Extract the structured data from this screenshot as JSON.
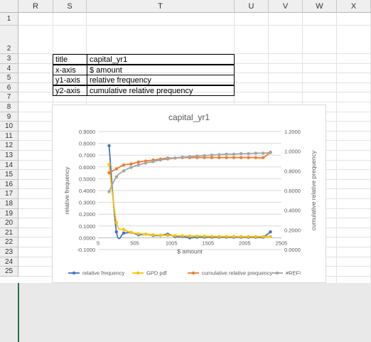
{
  "columns": [
    "R",
    "S",
    "T",
    "U",
    "V",
    "W",
    "X"
  ],
  "rows": [
    "1",
    "2",
    "3",
    "4",
    "5",
    "6",
    "7",
    "8",
    "9",
    "10",
    "11",
    "12",
    "13",
    "14",
    "15",
    "16",
    "17",
    "18",
    "19",
    "20",
    "21",
    "22",
    "23",
    "24",
    "25"
  ],
  "table": [
    {
      "key": "title",
      "value": "capital_yr1"
    },
    {
      "key": "x-axis",
      "value": "$ amount"
    },
    {
      "key": "y1-axis",
      "value": "relative frequency"
    },
    {
      "key": "y2-axis",
      "value": "cumulative relative prequency"
    }
  ],
  "chart_data": {
    "type": "line",
    "title": "capital_yr1",
    "xlabel": "$ amount",
    "ylabel": "relative frequency",
    "y2label": "cumulative relative prequency",
    "xlim": [
      5,
      2505
    ],
    "xticks": [
      "5",
      "505",
      "1005",
      "1505",
      "2005",
      "2505"
    ],
    "ylim": [
      -0.1,
      0.9
    ],
    "yticks": [
      "-0.1000",
      "0.0000",
      "0.1000",
      "0.2000",
      "0.3000",
      "0.4000",
      "0.5000",
      "0.6000",
      "0.7000",
      "0.8000",
      "0.9000"
    ],
    "y2lim": [
      0,
      1.2
    ],
    "y2ticks": [
      "0.0000",
      "0.2000",
      "0.4000",
      "0.6000",
      "0.8000",
      "1.0000",
      "1.2000"
    ],
    "legend_position": "bottom",
    "series": [
      {
        "name": "relative frequency",
        "axis": "y1",
        "color": "#4472C4",
        "x": [
          155,
          255,
          355,
          455,
          555,
          655,
          755,
          855,
          955,
          1055,
          1155,
          1255,
          1355,
          1455,
          1555,
          1655,
          1755,
          1855,
          1955,
          2055,
          2155,
          2255,
          2355
        ],
        "y": [
          0.78,
          0.05,
          0.04,
          0.045,
          0.025,
          0.03,
          0.02,
          0.02,
          0.03,
          0.01,
          0.01,
          0.0,
          0.005,
          0.005,
          0.005,
          0.005,
          0.005,
          0.005,
          0.005,
          0.005,
          0.005,
          0.005,
          0.05
        ]
      },
      {
        "name": "GPD pdf",
        "axis": "y1",
        "color": "#FFC000",
        "x": [
          155,
          255,
          355,
          455,
          555,
          655,
          755,
          855,
          955,
          1055,
          1155,
          1255,
          1355,
          1455,
          1555,
          1655,
          1755,
          1855,
          1955,
          2055,
          2155,
          2255,
          2355
        ],
        "y": [
          0.62,
          0.13,
          0.07,
          0.045,
          0.035,
          0.03,
          0.025,
          0.022,
          0.02,
          0.018,
          0.016,
          0.015,
          0.014,
          0.013,
          0.012,
          0.011,
          0.011,
          0.01,
          0.01,
          0.01,
          0.01,
          0.01,
          0.01
        ]
      },
      {
        "name": "cumulative relative prequency",
        "axis": "y2",
        "color": "#ED7D31",
        "x": [
          155,
          255,
          355,
          455,
          555,
          655,
          755,
          855,
          955,
          1055,
          1155,
          1255,
          1355,
          1455,
          1555,
          1655,
          1755,
          1855,
          1955,
          2055,
          2155,
          2255,
          2355
        ],
        "y": [
          0.78,
          0.82,
          0.86,
          0.87,
          0.89,
          0.9,
          0.91,
          0.92,
          0.93,
          0.93,
          0.935,
          0.935,
          0.935,
          0.935,
          0.935,
          0.935,
          0.935,
          0.935,
          0.935,
          0.935,
          0.935,
          0.935,
          0.99
        ]
      },
      {
        "name": "#REF!",
        "axis": "y2",
        "color": "#A5A5A5",
        "x": [
          155,
          255,
          355,
          455,
          555,
          655,
          755,
          855,
          955,
          1055,
          1155,
          1255,
          1355,
          1455,
          1555,
          1655,
          1755,
          1855,
          1955,
          2055,
          2155,
          2255,
          2355
        ],
        "y": [
          0.59,
          0.74,
          0.8,
          0.835,
          0.86,
          0.88,
          0.895,
          0.91,
          0.92,
          0.93,
          0.94,
          0.945,
          0.95,
          0.955,
          0.96,
          0.965,
          0.97,
          0.97,
          0.975,
          0.975,
          0.98,
          0.98,
          0.985
        ]
      }
    ]
  }
}
